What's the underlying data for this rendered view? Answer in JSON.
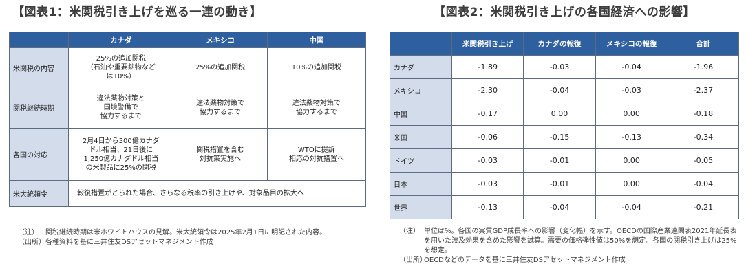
{
  "figure1": {
    "title": "【図表1：米関税引き上げを巡る一連の動き】",
    "header": [
      "",
      "カナダ",
      "メキシコ",
      "中国"
    ],
    "rows": [
      {
        "label": "米関税の内容",
        "cells": [
          "25%の追加関税\n（石油や重要鉱物など\nは10%）",
          "25%の追加関税",
          "10%の追加関税"
        ]
      },
      {
        "label": "関税継続時期",
        "cells": [
          "違法薬物対策と\n国境警備で\n協力するまで",
          "違法薬物対策で\n協力するまで",
          "違法薬物対策で\n協力するまで"
        ]
      },
      {
        "label": "各国の対応",
        "cells": [
          "2月4日から300億カナダ\nドル相当、21日後に\n1,250億カナダドル相当\nの米製品に25%の関税",
          "関税措置を含む\n対抗策実施へ",
          "WTOに提訴\n相応の対抗措置へ"
        ]
      }
    ],
    "president_row": {
      "label": "米大統領令",
      "text": "報復措置がとられた場合、さらなる税率の引き上げや、対象品目の拡大へ"
    },
    "notes": [
      {
        "tag": "（注）",
        "text": "関税継続時期は米ホワイトハウスの見解。米大統領令は2025年2月1日に明記された内容。"
      },
      {
        "tag": "（出所）",
        "text": "各種資料を基に三井住友DSアセットマネジメント作成"
      }
    ]
  },
  "figure2": {
    "title": "【図表2：米関税引き上げの各国経済への影響】",
    "header": [
      "",
      "米関税引き上げ",
      "カナダの報復",
      "メキシコの報復",
      "合計"
    ],
    "rows": [
      {
        "label": "カナダ",
        "values": [
          "-1.89",
          "-0.03",
          "-0.04",
          "-1.96"
        ]
      },
      {
        "label": "メキシコ",
        "values": [
          "-2.30",
          "-0.04",
          "-0.03",
          "-2.37"
        ]
      },
      {
        "label": "中国",
        "values": [
          "-0.17",
          "0.00",
          "0.00",
          "-0.18"
        ]
      },
      {
        "label": "米国",
        "values": [
          "-0.06",
          "-0.15",
          "-0.13",
          "-0.34"
        ]
      },
      {
        "label": "ドイツ",
        "values": [
          "-0.03",
          "-0.01",
          "0.00",
          "-0.05"
        ]
      },
      {
        "label": "日本",
        "values": [
          "-0.03",
          "-0.01",
          "0.00",
          "-0.04"
        ]
      },
      {
        "label": "世界",
        "values": [
          "-0.13",
          "-0.04",
          "-0.04",
          "-0.21"
        ]
      }
    ],
    "notes": [
      {
        "tag": "（注）",
        "text": "単位は%。各国の実質GDP成長率への影響（変化幅）を示す。OECDの国際産業連関表2021年延長表を用いた波及効果を含めた影響を試算。需要の価格弾性値は50%を想定。各国の関税引き上げは25%を想定。"
      },
      {
        "tag": "（出所）",
        "text": "OECDなどのデータを基に三井住友DSアセットマネジメント作成"
      }
    ]
  }
}
